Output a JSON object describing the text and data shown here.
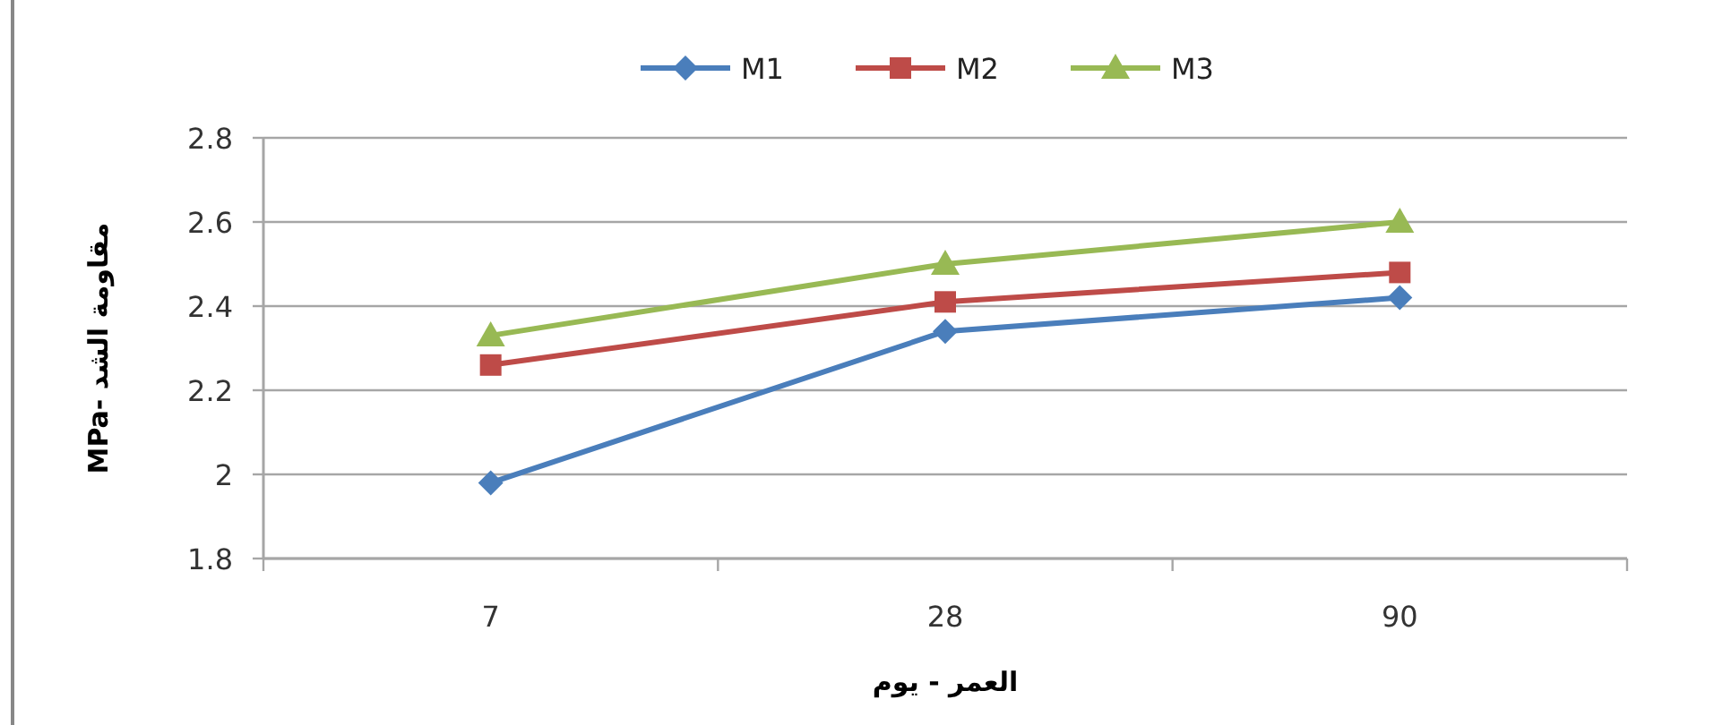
{
  "chart_data": {
    "type": "line",
    "xlabel": "العمر - يوم",
    "ylabel": "مقاومة الشد -MPa",
    "categories": [
      "7",
      "28",
      "90"
    ],
    "series": [
      {
        "name": "M1",
        "color": "#4a7ebb",
        "marker": "diamond",
        "values": [
          1.98,
          2.34,
          2.42
        ]
      },
      {
        "name": "M2",
        "color": "#be4b48",
        "marker": "square",
        "values": [
          2.26,
          2.41,
          2.48
        ]
      },
      {
        "name": "M3",
        "color": "#98b954",
        "marker": "triangle",
        "values": [
          2.33,
          2.5,
          2.6
        ]
      }
    ],
    "ylim": [
      1.8,
      2.8
    ],
    "yticks": [
      1.8,
      2,
      2.2,
      2.4,
      2.6,
      2.8
    ],
    "grid": "y",
    "legend": "top",
    "line_style": "solid"
  }
}
